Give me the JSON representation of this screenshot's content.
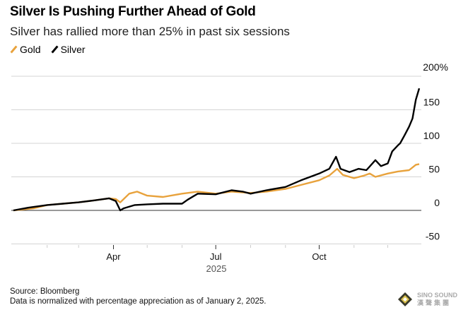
{
  "chart_data": {
    "type": "line",
    "title": "Silver Is Pushing Further Ahead of Gold",
    "subtitle": "Silver has rallied more than 25% in past six sessions",
    "ylim": [
      -50,
      200
    ],
    "y_ticks": [
      "200%",
      "150",
      "100",
      "50",
      "0",
      "-50"
    ],
    "y_tick_values": [
      200,
      150,
      100,
      50,
      0,
      -50
    ],
    "x_ticks": [
      {
        "label": "Apr",
        "date": "2025-04-01"
      },
      {
        "label": "Jul",
        "date": "2025-07-01"
      },
      {
        "label": "Oct",
        "date": "2025-10-01"
      }
    ],
    "x_year_label": "2025",
    "xlim": [
      "2025-01-01",
      "2026-01-05"
    ],
    "grid": true,
    "legend_position": "top-left",
    "series": [
      {
        "name": "Gold",
        "color": "#e8a23c",
        "points": [
          [
            "2025-01-02",
            0
          ],
          [
            "2025-01-20",
            3
          ],
          [
            "2025-02-01",
            8
          ],
          [
            "2025-02-15",
            10
          ],
          [
            "2025-03-01",
            12
          ],
          [
            "2025-03-15",
            15
          ],
          [
            "2025-03-28",
            18
          ],
          [
            "2025-04-03",
            17
          ],
          [
            "2025-04-07",
            12
          ],
          [
            "2025-04-15",
            25
          ],
          [
            "2025-04-22",
            28
          ],
          [
            "2025-05-01",
            22
          ],
          [
            "2025-05-15",
            20
          ],
          [
            "2025-06-01",
            25
          ],
          [
            "2025-06-15",
            28
          ],
          [
            "2025-07-01",
            25
          ],
          [
            "2025-07-15",
            28
          ],
          [
            "2025-08-01",
            26
          ],
          [
            "2025-08-15",
            28
          ],
          [
            "2025-09-01",
            32
          ],
          [
            "2025-09-15",
            38
          ],
          [
            "2025-10-01",
            45
          ],
          [
            "2025-10-10",
            52
          ],
          [
            "2025-10-17",
            62
          ],
          [
            "2025-10-22",
            53
          ],
          [
            "2025-11-01",
            48
          ],
          [
            "2025-11-10",
            52
          ],
          [
            "2025-11-15",
            55
          ],
          [
            "2025-11-20",
            50
          ],
          [
            "2025-12-01",
            55
          ],
          [
            "2025-12-10",
            58
          ],
          [
            "2025-12-20",
            60
          ],
          [
            "2025-12-26",
            68
          ],
          [
            "2025-12-29",
            69
          ]
        ]
      },
      {
        "name": "Silver",
        "color": "#000000",
        "points": [
          [
            "2025-01-02",
            0
          ],
          [
            "2025-01-15",
            4
          ],
          [
            "2025-02-01",
            8
          ],
          [
            "2025-02-15",
            10
          ],
          [
            "2025-03-01",
            12
          ],
          [
            "2025-03-15",
            15
          ],
          [
            "2025-03-28",
            18
          ],
          [
            "2025-04-03",
            14
          ],
          [
            "2025-04-07",
            0
          ],
          [
            "2025-04-10",
            3
          ],
          [
            "2025-04-20",
            8
          ],
          [
            "2025-05-01",
            9
          ],
          [
            "2025-05-15",
            10
          ],
          [
            "2025-06-01",
            10
          ],
          [
            "2025-06-06",
            16
          ],
          [
            "2025-06-15",
            25
          ],
          [
            "2025-07-01",
            24
          ],
          [
            "2025-07-15",
            30
          ],
          [
            "2025-07-25",
            28
          ],
          [
            "2025-08-01",
            25
          ],
          [
            "2025-08-15",
            30
          ],
          [
            "2025-09-01",
            35
          ],
          [
            "2025-09-15",
            45
          ],
          [
            "2025-10-01",
            55
          ],
          [
            "2025-10-10",
            62
          ],
          [
            "2025-10-16",
            80
          ],
          [
            "2025-10-20",
            62
          ],
          [
            "2025-10-28",
            57
          ],
          [
            "2025-11-05",
            62
          ],
          [
            "2025-11-12",
            60
          ],
          [
            "2025-11-20",
            75
          ],
          [
            "2025-11-25",
            66
          ],
          [
            "2025-12-01",
            70
          ],
          [
            "2025-12-05",
            88
          ],
          [
            "2025-12-10",
            97
          ],
          [
            "2025-12-12",
            100
          ],
          [
            "2025-12-16",
            112
          ],
          [
            "2025-12-20",
            125
          ],
          [
            "2025-12-23",
            137
          ],
          [
            "2025-12-26",
            165
          ],
          [
            "2025-12-29",
            182
          ]
        ]
      }
    ]
  },
  "footer": {
    "source": "Source: Bloomberg",
    "note": "Data is normalized with percentage appreciation as of January 2, 2025."
  },
  "logo": {
    "text1": "SINO SOUND",
    "text2": "漢聲集團"
  }
}
